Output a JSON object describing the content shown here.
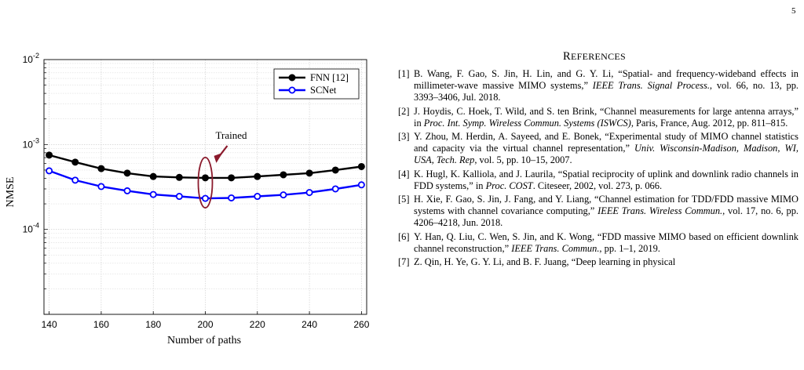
{
  "page_number": "5",
  "references_heading": {
    "first": "R",
    "rest": "EFERENCES"
  },
  "references": [
    {
      "num": "[1]",
      "parts": [
        {
          "t": "B. Wang, F. Gao, S. Jin, H. Lin, and G. Y. Li, “Spatial- and frequency-wideband effects in millimeter-wave massive MIMO systems,” "
        },
        {
          "t": "IEEE Trans. Signal Process.",
          "i": true
        },
        {
          "t": ", vol. 66, no. 13, pp. 3393–3406, Jul. 2018."
        }
      ]
    },
    {
      "num": "[2]",
      "parts": [
        {
          "t": "J. Hoydis, C. Hoek, T. Wild, and S. ten Brink, “Channel measurements for large antenna arrays,” in "
        },
        {
          "t": "Proc. Int. Symp. Wireless Commun. Systems (ISWCS)",
          "i": true
        },
        {
          "t": ", Paris, France, Aug. 2012, pp. 811–815."
        }
      ]
    },
    {
      "num": "[3]",
      "parts": [
        {
          "t": "Y. Zhou, M. Herdin, A. Sayeed, and E. Bonek, “Experimental study of MIMO channel statistics and capacity via the virtual channel representation,” "
        },
        {
          "t": "Univ. Wisconsin-Madison, Madison, WI, USA, Tech. Rep",
          "i": true
        },
        {
          "t": ", vol. 5, pp. 10–15, 2007."
        }
      ]
    },
    {
      "num": "[4]",
      "parts": [
        {
          "t": "K. Hugl, K. Kalliola, and J. Laurila, “Spatial reciprocity of uplink and downlink radio channels in FDD systems,” in "
        },
        {
          "t": "Proc. COST",
          "i": true
        },
        {
          "t": ". Citeseer, 2002, vol. 273, p. 066."
        }
      ]
    },
    {
      "num": "[5]",
      "parts": [
        {
          "t": "H. Xie, F. Gao, S. Jin, J. Fang, and Y. Liang, “Channel estimation for TDD/FDD massive MIMO systems with channel covariance computing,” "
        },
        {
          "t": "IEEE Trans. Wireless Commun.",
          "i": true
        },
        {
          "t": ", vol. 17, no. 6, pp. 4206–4218, Jun. 2018."
        }
      ]
    },
    {
      "num": "[6]",
      "parts": [
        {
          "t": "Y. Han, Q. Liu, C. Wen, S. Jin, and K. Wong, “FDD massive MIMO based on efficient downlink channel reconstruction,” "
        },
        {
          "t": "IEEE Trans. Commun.",
          "i": true
        },
        {
          "t": ", pp. 1–1, 2019."
        }
      ]
    },
    {
      "num": "[7]",
      "parts": [
        {
          "t": "Z. Qin, H. Ye, G. Y. Li, and B. F. Juang, “Deep learning in physical"
        }
      ]
    }
  ],
  "chart_data": {
    "type": "line",
    "xlabel": "Number of paths",
    "ylabel": "NMSE",
    "xlim": [
      138,
      262
    ],
    "ylim": [
      1e-05,
      0.01
    ],
    "y_scale": "log",
    "x_ticks": [
      140,
      160,
      180,
      200,
      220,
      240,
      260
    ],
    "y_ticks": [
      {
        "base": "10",
        "exp": "-2",
        "value": 0.01
      },
      {
        "base": "10",
        "exp": "-3",
        "value": 0.001
      },
      {
        "base": "10",
        "exp": "-4",
        "value": 0.0001
      }
    ],
    "grid": true,
    "legend_position": "top-right",
    "x": [
      140,
      150,
      160,
      170,
      180,
      190,
      200,
      210,
      220,
      230,
      240,
      250,
      260
    ],
    "series": [
      {
        "name": "FNN [12]",
        "color": "#000000",
        "values": [
          0.00075,
          0.00062,
          0.00052,
          0.00046,
          0.00042,
          0.00041,
          0.000405,
          0.000405,
          0.00042,
          0.00044,
          0.00046,
          0.0005,
          0.00055
        ]
      },
      {
        "name": "SCNet",
        "color": "#0000ff",
        "values": [
          0.00049,
          0.00038,
          0.00032,
          0.000285,
          0.000258,
          0.000245,
          0.000232,
          0.000235,
          0.000245,
          0.000255,
          0.000272,
          0.0003,
          0.000335
        ]
      }
    ],
    "annotations": [
      {
        "text": "Trained",
        "x": 200,
        "color": "#8b1a2c"
      }
    ]
  }
}
